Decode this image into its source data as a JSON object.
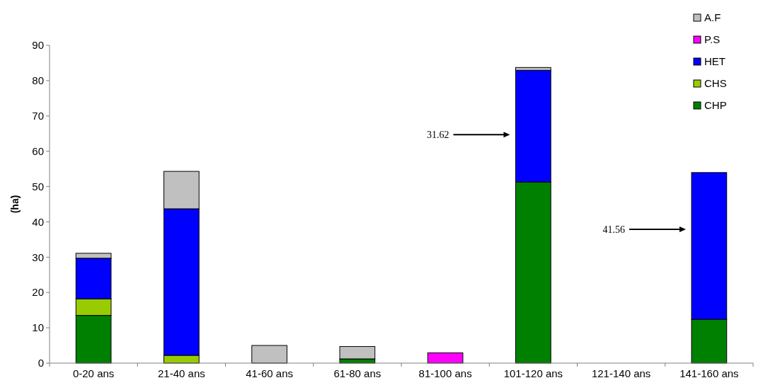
{
  "chart_data": {
    "type": "bar",
    "stacked": true,
    "ylabel": "(ha)",
    "categories": [
      "0-20 ans",
      "21-40 ans",
      "41-60 ans",
      "61-80 ans",
      "81-100 ans",
      "101-120 ans",
      "121-140 ans",
      "141-160 ans"
    ],
    "series": [
      {
        "name": "CHP",
        "color": "#008000",
        "values": [
          13.5,
          null,
          null,
          1.2,
          null,
          51.3,
          null,
          12.4
        ]
      },
      {
        "name": "CHS",
        "color": "#99cc00",
        "values": [
          4.7,
          2.2,
          null,
          null,
          null,
          null,
          null,
          null
        ]
      },
      {
        "name": "HET",
        "color": "#0000ff",
        "values": [
          11.5,
          41.5,
          null,
          null,
          null,
          31.62,
          null,
          41.56
        ]
      },
      {
        "name": "P.S",
        "color": "#ff00ff",
        "values": [
          null,
          null,
          null,
          null,
          2.9,
          null,
          null,
          null
        ]
      },
      {
        "name": "A.F",
        "color": "#c0c0c0",
        "values": [
          1.4,
          10.6,
          5,
          3.5,
          null,
          0.8,
          null,
          null
        ]
      }
    ],
    "ylim": [
      0,
      90
    ],
    "yticks": [
      0,
      10,
      20,
      30,
      40,
      50,
      60,
      70,
      80,
      90
    ],
    "grid": false,
    "legend": "top right",
    "annotations": [
      "31.62",
      "41.56"
    ]
  }
}
